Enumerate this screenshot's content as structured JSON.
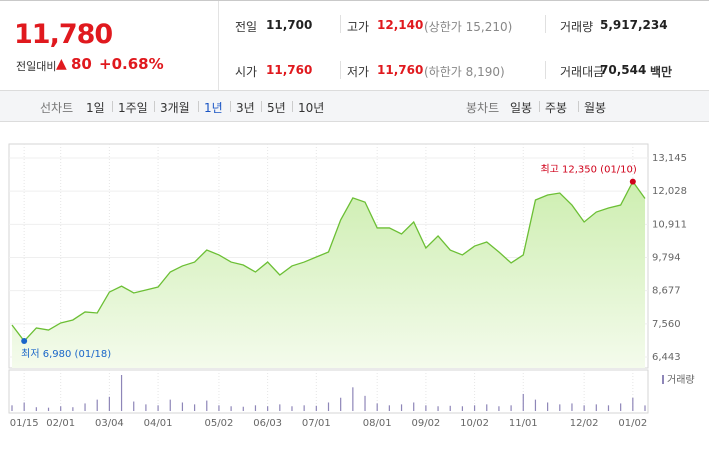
{
  "quote": {
    "price": "11,780",
    "change_label": "전일대비",
    "change": "80",
    "change_rate": "+0.68%",
    "stats": [
      {
        "label": "전일",
        "value": "11,700",
        "color": "#222222"
      },
      {
        "label": "고가",
        "value": "12,140",
        "note": "(상한가 15,210)",
        "color": "#e0191e"
      },
      {
        "label": "거래량",
        "value": "5,917,234",
        "color": "#222222"
      },
      {
        "label": "시가",
        "value": "11,760",
        "color": "#e0191e"
      },
      {
        "label": "저가",
        "value": "11,760",
        "note": "(하한가 8,190)",
        "color": "#e0191e"
      },
      {
        "label": "거래대금",
        "value": "70,544",
        "unit": "백만",
        "color": "#222222"
      }
    ]
  },
  "tabs": {
    "line_label": "선차트",
    "line_items": [
      "1일",
      "1주일",
      "3개월",
      "1년",
      "3년",
      "5년",
      "10년"
    ],
    "selected": 3,
    "candle_label": "봉차트",
    "candle_items": [
      "일봉",
      "주봉",
      "월봉"
    ]
  },
  "chart_data": {
    "type": "area",
    "color": "#6cbf35",
    "grid": true,
    "categories": [
      null,
      "01/15",
      null,
      null,
      "02/01",
      null,
      null,
      null,
      "03/04",
      null,
      null,
      null,
      "04/01",
      null,
      null,
      null,
      null,
      "05/02",
      null,
      null,
      null,
      "06/03",
      null,
      null,
      null,
      "07/01",
      null,
      null,
      null,
      null,
      "08/01",
      null,
      null,
      null,
      "09/02",
      null,
      null,
      null,
      "10/02",
      null,
      null,
      null,
      "11/01",
      null,
      null,
      null,
      null,
      "12/02",
      null,
      null,
      null,
      "01/02",
      null
    ],
    "values": [
      7520,
      6980,
      7420,
      7350,
      7590,
      7690,
      7960,
      7925,
      8630,
      8830,
      8600,
      8700,
      8800,
      9305,
      9510,
      9640,
      10045,
      9880,
      9640,
      9540,
      9305,
      9640,
      9205,
      9510,
      9640,
      9810,
      9980,
      11060,
      11800,
      11660,
      10790,
      10790,
      10585,
      10990,
      10115,
      10520,
      10045,
      9880,
      10180,
      10315,
      9980,
      9610,
      9880,
      11730,
      11900,
      11965,
      11560,
      10990,
      11325,
      11460,
      11560,
      12350,
      11780
    ],
    "ylim": [
      6443,
      13145
    ],
    "yticks": [
      {
        "value": 6443,
        "label": "6,443"
      },
      {
        "value": 7560,
        "label": "7,560"
      },
      {
        "value": 8677,
        "label": "8,677"
      },
      {
        "value": 9794,
        "label": "9,794"
      },
      {
        "value": 10911,
        "label": "10,911"
      },
      {
        "value": 12028,
        "label": "12,028"
      },
      {
        "value": 13145,
        "label": "13,145"
      }
    ],
    "annotations": [
      {
        "label": "최고 12,350 (01/10)",
        "value": 12350,
        "color": "#d0021b"
      },
      {
        "label": "최저 6,980 (01/18)",
        "value": 6980,
        "color": "#1a66c9"
      }
    ],
    "volume": {
      "name": "거래량",
      "color": "#8e86b8",
      "values": [
        6000000,
        9000000,
        4000000,
        3500000,
        5000000,
        4000000,
        8000000,
        12000000,
        15000000,
        38000000,
        10000000,
        7000000,
        6000000,
        12000000,
        9000000,
        7000000,
        11000000,
        6000000,
        5000000,
        4500000,
        6000000,
        5000000,
        7000000,
        5000000,
        6000000,
        5500000,
        9000000,
        14000000,
        25000000,
        16000000,
        8000000,
        6000000,
        7000000,
        9000000,
        6000000,
        5000000,
        5500000,
        5000000,
        6000000,
        7000000,
        5000000,
        6000000,
        18000000,
        12000000,
        9000000,
        7000000,
        8000000,
        6000000,
        7000000,
        6000000,
        8000000,
        14000000,
        5917234
      ]
    }
  }
}
